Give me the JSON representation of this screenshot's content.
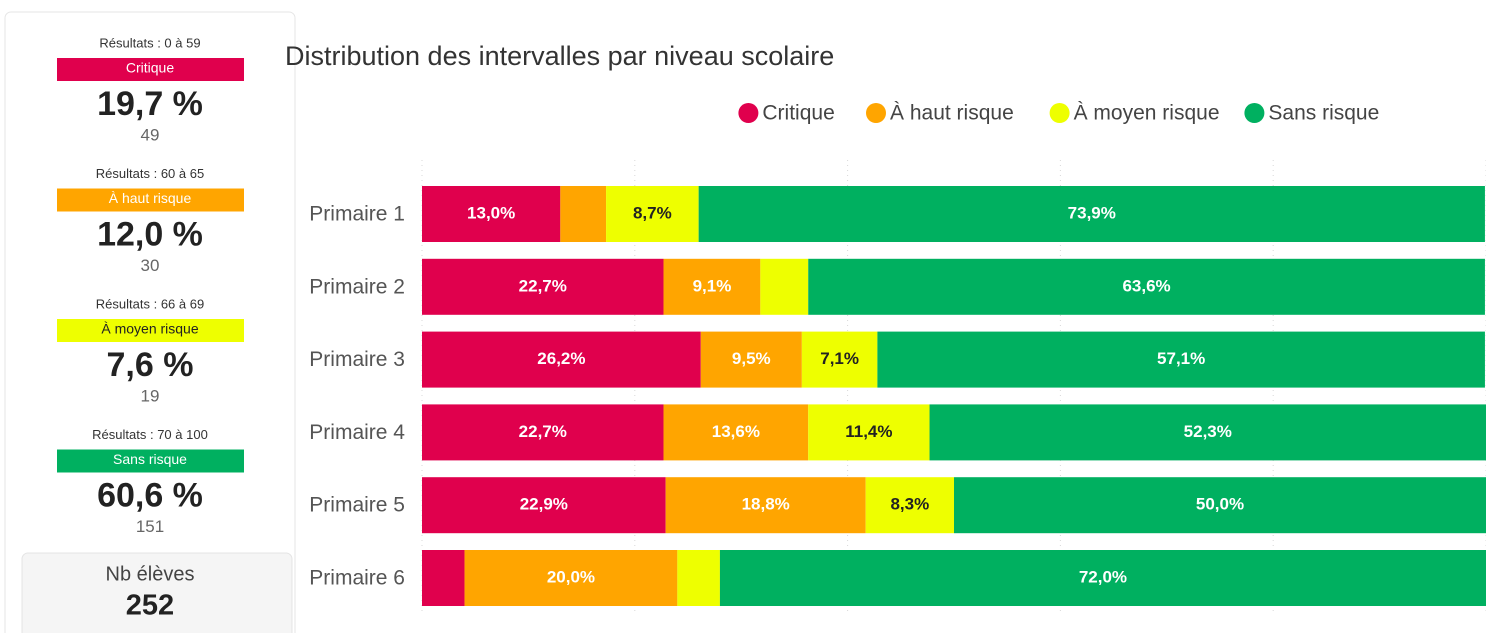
{
  "summary": {
    "cards": [
      {
        "range": "Résultats : 0 à 59",
        "label": "Critique",
        "percent": "19,7 %",
        "count": 49,
        "color": "#e0004d",
        "text_color": "#ffffff"
      },
      {
        "range": "Résultats : 60 à 65",
        "label": "À haut risque",
        "percent": "12,0 %",
        "count": 30,
        "color": "#ffa500",
        "text_color": "#ffffff"
      },
      {
        "range": "Résultats : 66 à 69",
        "label": "À moyen risque",
        "percent": "7,6 %",
        "count": 19,
        "color": "#eeff00",
        "text_color": "#222222"
      },
      {
        "range": "Résultats : 70 à 100",
        "label": "Sans risque",
        "percent": "60,6 %",
        "count": 151,
        "color": "#00b060",
        "text_color": "#ffffff"
      }
    ],
    "total_label": "Nb élèves",
    "total": 252
  },
  "chart_data": {
    "type": "stacked_bar_horizontal",
    "title": "Distribution des intervalles par niveau scolaire",
    "categories": [
      "Primaire 1",
      "Primaire 2",
      "Primaire 3",
      "Primaire 4",
      "Primaire 5",
      "Primaire 6"
    ],
    "series": [
      {
        "name": "Critique",
        "color": "#e0004d",
        "values": [
          13.0,
          22.7,
          26.2,
          22.7,
          22.9,
          4.0
        ],
        "value_labels": [
          "13,0%",
          "22,7%",
          "26,2%",
          "22,7%",
          "22,9%",
          null
        ]
      },
      {
        "name": "À haut risque",
        "color": "#ffa500",
        "values": [
          4.3,
          9.1,
          9.5,
          13.6,
          18.8,
          20.0
        ],
        "value_labels": [
          null,
          "9,1%",
          "9,5%",
          "13,6%",
          "18,8%",
          "20,0%"
        ]
      },
      {
        "name": "À moyen risque",
        "color": "#eeff00",
        "values": [
          8.7,
          4.5,
          7.1,
          11.4,
          8.3,
          4.0
        ],
        "value_labels": [
          "8,7%",
          null,
          "7,1%",
          "11,4%",
          "8,3%",
          null
        ]
      },
      {
        "name": "Sans risque",
        "color": "#00b060",
        "values": [
          73.9,
          63.6,
          57.1,
          52.3,
          50.0,
          72.0
        ],
        "value_labels": [
          "73,9%",
          "63,6%",
          "57,1%",
          "52,3%",
          "50,0%",
          "72,0%"
        ]
      }
    ],
    "xlim": [
      0,
      100
    ],
    "xticks": [
      0,
      20,
      40,
      60,
      80,
      100
    ],
    "grid": true,
    "legend": "top"
  }
}
